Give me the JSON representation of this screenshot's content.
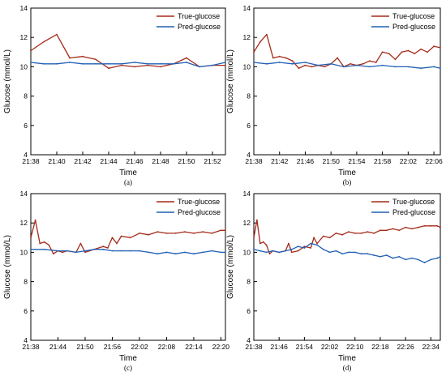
{
  "chart_data": [
    {
      "type": "line",
      "caption": "(a)",
      "xlabel": "Time",
      "ylabel": "Glucose (mmol/L)",
      "ylim": [
        4,
        14
      ],
      "yticks": [
        4,
        6,
        8,
        10,
        12,
        14
      ],
      "xrange_minutes": [
        "21:38",
        "21:53"
      ],
      "xticks": [
        "21:38",
        "21:40",
        "21:42",
        "21:44",
        "21:46",
        "21:48",
        "21:50",
        "21:52"
      ],
      "legend_position": "top-right",
      "series": [
        {
          "name": "True-glucose",
          "color": "#a52a1a",
          "points": [
            [
              "21:38",
              11.1
            ],
            [
              "21:39",
              11.7
            ],
            [
              "21:40",
              12.2
            ],
            [
              "21:41",
              10.6
            ],
            [
              "21:42",
              10.7
            ],
            [
              "21:43",
              10.5
            ],
            [
              "21:44",
              9.9
            ],
            [
              "21:45",
              10.1
            ],
            [
              "21:46",
              10.0
            ],
            [
              "21:47",
              10.1
            ],
            [
              "21:48",
              10.0
            ],
            [
              "21:49",
              10.2
            ],
            [
              "21:50",
              10.6
            ],
            [
              "21:51",
              10.0
            ],
            [
              "21:52",
              10.1
            ],
            [
              "21:53",
              10.1
            ]
          ]
        },
        {
          "name": "Pred-glucose",
          "color": "#1f5fb4",
          "points": [
            [
              "21:38",
              10.3
            ],
            [
              "21:39",
              10.2
            ],
            [
              "21:40",
              10.2
            ],
            [
              "21:41",
              10.3
            ],
            [
              "21:42",
              10.2
            ],
            [
              "21:43",
              10.2
            ],
            [
              "21:44",
              10.2
            ],
            [
              "21:45",
              10.2
            ],
            [
              "21:46",
              10.3
            ],
            [
              "21:47",
              10.2
            ],
            [
              "21:48",
              10.2
            ],
            [
              "21:49",
              10.2
            ],
            [
              "21:50",
              10.3
            ],
            [
              "21:51",
              10.0
            ],
            [
              "21:52",
              10.1
            ],
            [
              "21:53",
              10.3
            ]
          ]
        }
      ]
    },
    {
      "type": "line",
      "caption": "(b)",
      "xlabel": "Time",
      "ylabel": "Glucose (mmol/L)",
      "ylim": [
        4,
        14
      ],
      "yticks": [
        4,
        6,
        8,
        10,
        12,
        14
      ],
      "xrange_minutes": [
        "21:38",
        "22:07"
      ],
      "xticks": [
        "21:38",
        "21:42",
        "21:46",
        "21:50",
        "21:54",
        "21:58",
        "22:02",
        "22:06"
      ],
      "legend_position": "top-right",
      "series": [
        {
          "name": "True-glucose",
          "color": "#a52a1a",
          "points": [
            [
              "21:38",
              11.0
            ],
            [
              "21:39",
              11.7
            ],
            [
              "21:40",
              12.2
            ],
            [
              "21:41",
              10.6
            ],
            [
              "21:42",
              10.7
            ],
            [
              "21:43",
              10.6
            ],
            [
              "21:44",
              10.4
            ],
            [
              "21:45",
              9.9
            ],
            [
              "21:46",
              10.1
            ],
            [
              "21:47",
              10.0
            ],
            [
              "21:48",
              10.1
            ],
            [
              "21:49",
              10.0
            ],
            [
              "21:50",
              10.2
            ],
            [
              "21:51",
              10.6
            ],
            [
              "21:52",
              10.0
            ],
            [
              "21:53",
              10.2
            ],
            [
              "21:54",
              10.1
            ],
            [
              "21:55",
              10.2
            ],
            [
              "21:56",
              10.4
            ],
            [
              "21:57",
              10.3
            ],
            [
              "21:58",
              11.0
            ],
            [
              "21:59",
              10.9
            ],
            [
              "22:00",
              10.5
            ],
            [
              "22:01",
              11.0
            ],
            [
              "22:02",
              11.1
            ],
            [
              "22:03",
              10.9
            ],
            [
              "22:04",
              11.2
            ],
            [
              "22:05",
              11.0
            ],
            [
              "22:06",
              11.4
            ],
            [
              "22:07",
              11.3
            ]
          ]
        },
        {
          "name": "Pred-glucose",
          "color": "#1f5fb4",
          "points": [
            [
              "21:38",
              10.3
            ],
            [
              "21:40",
              10.2
            ],
            [
              "21:42",
              10.3
            ],
            [
              "21:44",
              10.2
            ],
            [
              "21:46",
              10.3
            ],
            [
              "21:48",
              10.1
            ],
            [
              "21:50",
              10.2
            ],
            [
              "21:52",
              10.0
            ],
            [
              "21:54",
              10.1
            ],
            [
              "21:56",
              10.0
            ],
            [
              "21:58",
              10.1
            ],
            [
              "22:00",
              10.0
            ],
            [
              "22:02",
              10.0
            ],
            [
              "22:04",
              9.9
            ],
            [
              "22:06",
              10.0
            ],
            [
              "22:07",
              9.9
            ]
          ]
        }
      ]
    },
    {
      "type": "line",
      "caption": "(c)",
      "xlabel": "Time",
      "ylabel": "Glucose (mmol/L)",
      "ylim": [
        4,
        14
      ],
      "yticks": [
        4,
        6,
        8,
        10,
        12,
        14
      ],
      "xrange_minutes": [
        "21:38",
        "22:21"
      ],
      "xticks": [
        "21:38",
        "21:44",
        "21:50",
        "21:56",
        "22:02",
        "22:08",
        "22:14",
        "22:20"
      ],
      "legend_position": "top-right",
      "series": [
        {
          "name": "True-glucose",
          "color": "#a52a1a",
          "points": [
            [
              "21:38",
              11.0
            ],
            [
              "21:39",
              12.2
            ],
            [
              "21:40",
              10.6
            ],
            [
              "21:41",
              10.7
            ],
            [
              "21:42",
              10.5
            ],
            [
              "21:43",
              9.9
            ],
            [
              "21:44",
              10.1
            ],
            [
              "21:45",
              10.0
            ],
            [
              "21:46",
              10.1
            ],
            [
              "21:48",
              10.0
            ],
            [
              "21:49",
              10.6
            ],
            [
              "21:50",
              10.0
            ],
            [
              "21:52",
              10.2
            ],
            [
              "21:54",
              10.4
            ],
            [
              "21:55",
              10.3
            ],
            [
              "21:56",
              11.0
            ],
            [
              "21:57",
              10.6
            ],
            [
              "21:58",
              11.1
            ],
            [
              "22:00",
              11.0
            ],
            [
              "22:02",
              11.3
            ],
            [
              "22:04",
              11.2
            ],
            [
              "22:06",
              11.4
            ],
            [
              "22:08",
              11.3
            ],
            [
              "22:10",
              11.3
            ],
            [
              "22:12",
              11.4
            ],
            [
              "22:14",
              11.3
            ],
            [
              "22:16",
              11.4
            ],
            [
              "22:18",
              11.3
            ],
            [
              "22:20",
              11.5
            ],
            [
              "22:21",
              11.5
            ]
          ]
        },
        {
          "name": "Pred-glucose",
          "color": "#1f5fb4",
          "points": [
            [
              "21:38",
              10.2
            ],
            [
              "21:41",
              10.2
            ],
            [
              "21:44",
              10.1
            ],
            [
              "21:46",
              10.1
            ],
            [
              "21:48",
              10.0
            ],
            [
              "21:50",
              10.1
            ],
            [
              "21:52",
              10.2
            ],
            [
              "21:54",
              10.2
            ],
            [
              "21:56",
              10.1
            ],
            [
              "21:58",
              10.1
            ],
            [
              "22:00",
              10.1
            ],
            [
              "22:02",
              10.1
            ],
            [
              "22:04",
              10.0
            ],
            [
              "22:06",
              9.9
            ],
            [
              "22:08",
              10.0
            ],
            [
              "22:10",
              9.9
            ],
            [
              "22:12",
              10.0
            ],
            [
              "22:14",
              9.9
            ],
            [
              "22:16",
              10.0
            ],
            [
              "22:18",
              10.1
            ],
            [
              "22:20",
              10.0
            ],
            [
              "22:21",
              10.0
            ]
          ]
        }
      ]
    },
    {
      "type": "line",
      "caption": "(d)",
      "xlabel": "Time",
      "ylabel": "Glucose (mmol/L)",
      "ylim": [
        4,
        14
      ],
      "yticks": [
        4,
        6,
        8,
        10,
        12,
        14
      ],
      "xrange_minutes": [
        "21:38",
        "22:37"
      ],
      "xticks": [
        "21:38",
        "21:46",
        "21:54",
        "22:02",
        "22:10",
        "22:18",
        "22:26",
        "22:34"
      ],
      "legend_position": "top-right",
      "series": [
        {
          "name": "True-glucose",
          "color": "#a52a1a",
          "points": [
            [
              "21:38",
              11.0
            ],
            [
              "21:39",
              12.2
            ],
            [
              "21:40",
              10.6
            ],
            [
              "21:41",
              10.7
            ],
            [
              "21:42",
              10.5
            ],
            [
              "21:43",
              9.9
            ],
            [
              "21:44",
              10.1
            ],
            [
              "21:46",
              10.0
            ],
            [
              "21:48",
              10.1
            ],
            [
              "21:49",
              10.6
            ],
            [
              "21:50",
              10.0
            ],
            [
              "21:52",
              10.1
            ],
            [
              "21:54",
              10.4
            ],
            [
              "21:56",
              10.3
            ],
            [
              "21:57",
              11.0
            ],
            [
              "21:58",
              10.6
            ],
            [
              "22:00",
              11.1
            ],
            [
              "22:02",
              11.0
            ],
            [
              "22:04",
              11.3
            ],
            [
              "22:06",
              11.2
            ],
            [
              "22:08",
              11.4
            ],
            [
              "22:10",
              11.3
            ],
            [
              "22:12",
              11.3
            ],
            [
              "22:14",
              11.4
            ],
            [
              "22:16",
              11.3
            ],
            [
              "22:18",
              11.5
            ],
            [
              "22:20",
              11.5
            ],
            [
              "22:22",
              11.6
            ],
            [
              "22:24",
              11.5
            ],
            [
              "22:26",
              11.7
            ],
            [
              "22:28",
              11.6
            ],
            [
              "22:30",
              11.7
            ],
            [
              "22:32",
              11.8
            ],
            [
              "22:34",
              11.8
            ],
            [
              "22:36",
              11.8
            ],
            [
              "22:37",
              11.7
            ]
          ]
        },
        {
          "name": "Pred-glucose",
          "color": "#1f5fb4",
          "points": [
            [
              "21:38",
              10.2
            ],
            [
              "21:40",
              10.1
            ],
            [
              "21:42",
              10.0
            ],
            [
              "21:44",
              10.1
            ],
            [
              "21:46",
              10.0
            ],
            [
              "21:48",
              10.1
            ],
            [
              "21:50",
              10.2
            ],
            [
              "21:52",
              10.4
            ],
            [
              "21:54",
              10.3
            ],
            [
              "21:56",
              10.6
            ],
            [
              "21:58",
              10.5
            ],
            [
              "22:00",
              10.2
            ],
            [
              "22:02",
              10.0
            ],
            [
              "22:04",
              10.1
            ],
            [
              "22:06",
              9.9
            ],
            [
              "22:08",
              10.0
            ],
            [
              "22:10",
              10.0
            ],
            [
              "22:12",
              9.9
            ],
            [
              "22:14",
              9.9
            ],
            [
              "22:16",
              9.8
            ],
            [
              "22:18",
              9.7
            ],
            [
              "22:20",
              9.8
            ],
            [
              "22:22",
              9.6
            ],
            [
              "22:24",
              9.7
            ],
            [
              "22:26",
              9.5
            ],
            [
              "22:28",
              9.6
            ],
            [
              "22:30",
              9.5
            ],
            [
              "22:32",
              9.3
            ],
            [
              "22:34",
              9.5
            ],
            [
              "22:36",
              9.6
            ],
            [
              "22:37",
              9.7
            ]
          ]
        }
      ]
    }
  ]
}
